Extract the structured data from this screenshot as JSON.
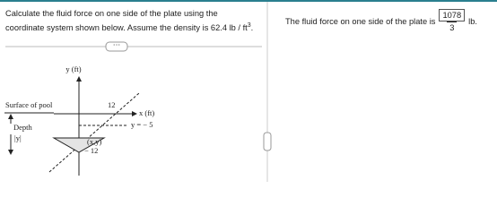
{
  "question": {
    "text": "Calculate the fluid force on one side of the plate using the coordinate system shown below. Assume the density is 62.4 lb / ft",
    "superscript": "3",
    "end": "."
  },
  "diagram": {
    "y_axis_label": "y (ft)",
    "surface_label": "Surface of pool",
    "depth_label": "Depth",
    "depth_abs": "|y|",
    "top_label": "12",
    "x_axis_label": "x (ft)",
    "line_label": "y = − 5",
    "point_label": "(x,y)",
    "bottom_label": "− 12"
  },
  "answer": {
    "prefix": "The fluid force on one side of the plate is",
    "numerator": "1078",
    "denominator": "3",
    "unit": "lb."
  }
}
